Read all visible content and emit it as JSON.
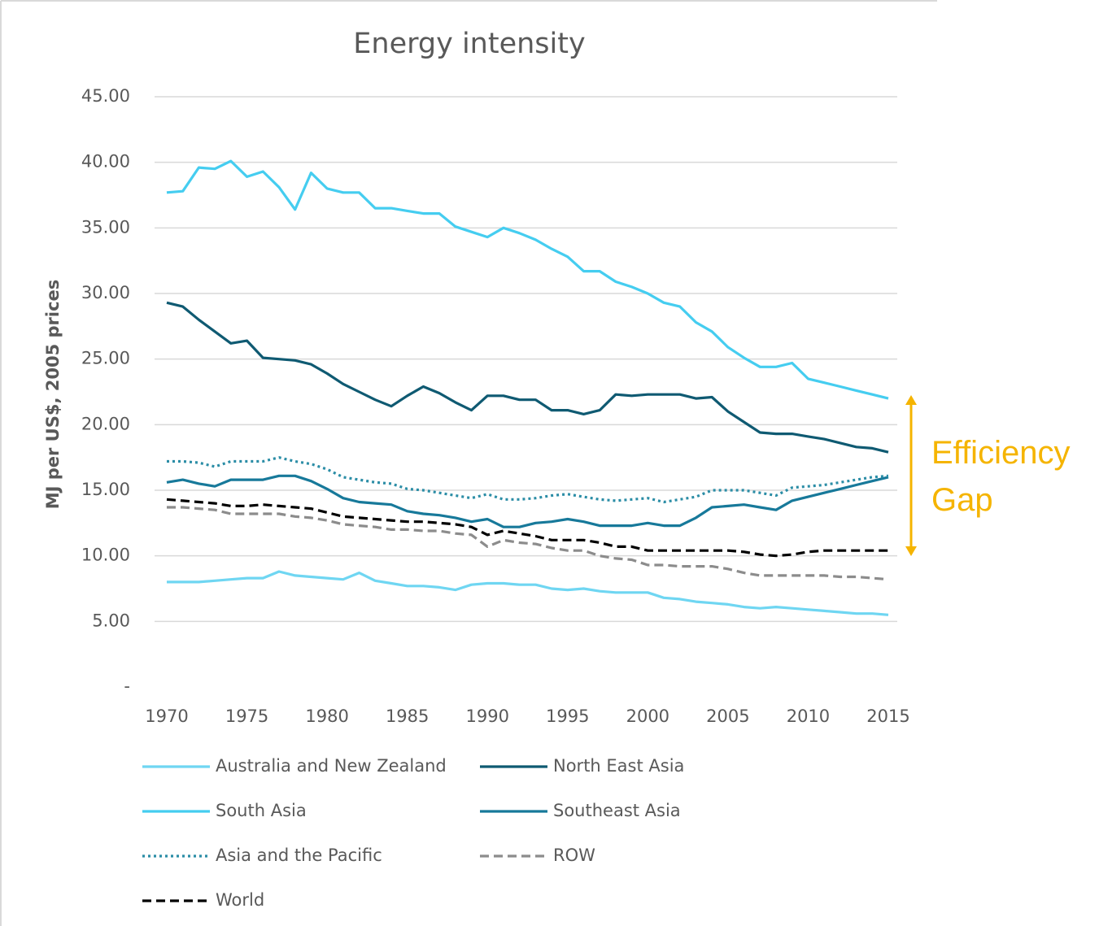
{
  "chart_data": {
    "type": "line",
    "title": "Energy intensity",
    "y_label": "MJ per US$, 2005 prices",
    "annotation": "Efficiency Gap",
    "x": [
      1970,
      1971,
      1972,
      1973,
      1974,
      1975,
      1976,
      1977,
      1978,
      1979,
      1980,
      1981,
      1982,
      1983,
      1984,
      1985,
      1986,
      1987,
      1988,
      1989,
      1990,
      1991,
      1992,
      1993,
      1994,
      1995,
      1996,
      1997,
      1998,
      1999,
      2000,
      2001,
      2002,
      2003,
      2004,
      2005,
      2006,
      2007,
      2008,
      2009,
      2010,
      2011,
      2012,
      2013,
      2014,
      2015
    ],
    "xlim": [
      1970,
      2015
    ],
    "xticks": [
      1970,
      1975,
      1980,
      1985,
      1990,
      1995,
      2000,
      2005,
      2010,
      2015
    ],
    "ylim": [
      0,
      45
    ],
    "yticks": [
      {
        "value": 0,
        "label": "-"
      },
      {
        "value": 5,
        "label": "5.00"
      },
      {
        "value": 10,
        "label": "10.00"
      },
      {
        "value": 15,
        "label": "15.00"
      },
      {
        "value": 20,
        "label": "20.00"
      },
      {
        "value": 25,
        "label": "25.00"
      },
      {
        "value": 30,
        "label": "30.00"
      },
      {
        "value": 35,
        "label": "35.00"
      },
      {
        "value": 40,
        "label": "40.00"
      },
      {
        "value": 45,
        "label": "45.00"
      }
    ],
    "grid": true,
    "legend": "bottom",
    "series": [
      {
        "name": "Australia and New Zealand",
        "color": "#6fd6f2",
        "style": "solid",
        "values": [
          8.0,
          8.0,
          8.0,
          8.1,
          8.2,
          8.3,
          8.3,
          8.8,
          8.5,
          8.4,
          8.3,
          8.2,
          8.7,
          8.1,
          7.9,
          7.7,
          7.7,
          7.6,
          7.4,
          7.8,
          7.9,
          7.9,
          7.8,
          7.8,
          7.5,
          7.4,
          7.5,
          7.3,
          7.2,
          7.2,
          7.2,
          6.8,
          6.7,
          6.5,
          6.4,
          6.3,
          6.1,
          6.0,
          6.1,
          6.0,
          5.9,
          5.8,
          5.7,
          5.6,
          5.6,
          5.5
        ]
      },
      {
        "name": "North East Asia",
        "color": "#0f5a72",
        "style": "solid",
        "values": [
          29.3,
          29.0,
          28.0,
          27.1,
          26.2,
          26.4,
          25.1,
          25.0,
          24.9,
          24.6,
          23.9,
          23.1,
          22.5,
          21.9,
          21.4,
          22.2,
          22.9,
          22.4,
          21.7,
          21.1,
          22.2,
          22.2,
          21.9,
          21.9,
          21.1,
          21.1,
          20.8,
          21.1,
          22.3,
          22.2,
          22.3,
          22.3,
          22.3,
          22.0,
          22.1,
          21.0,
          20.2,
          19.4,
          19.3,
          19.3,
          19.1,
          18.9,
          18.6,
          18.3,
          18.2,
          17.9
        ]
      },
      {
        "name": "South Asia",
        "color": "#45cdf0",
        "style": "solid",
        "values": [
          37.7,
          37.8,
          39.6,
          39.5,
          40.1,
          38.9,
          39.3,
          38.1,
          36.4,
          39.2,
          38.0,
          37.7,
          37.7,
          36.5,
          36.5,
          36.3,
          36.1,
          36.1,
          35.1,
          34.7,
          34.3,
          35.0,
          34.6,
          34.1,
          33.4,
          32.8,
          31.7,
          31.7,
          30.9,
          30.5,
          30.0,
          29.3,
          29.0,
          27.8,
          27.1,
          25.9,
          25.1,
          24.4,
          24.4,
          24.7,
          23.5,
          23.2,
          22.9,
          22.6,
          22.3,
          22.0
        ]
      },
      {
        "name": "Southeast Asia",
        "color": "#17799a",
        "style": "solid",
        "values": [
          15.6,
          15.8,
          15.5,
          15.3,
          15.8,
          15.8,
          15.8,
          16.1,
          16.1,
          15.7,
          15.1,
          14.4,
          14.1,
          14.0,
          13.9,
          13.4,
          13.2,
          13.1,
          12.9,
          12.6,
          12.8,
          12.2,
          12.2,
          12.5,
          12.6,
          12.8,
          12.6,
          12.3,
          12.3,
          12.3,
          12.5,
          12.3,
          12.3,
          12.9,
          13.7,
          13.8,
          13.9,
          13.7,
          13.5,
          14.2,
          14.5,
          14.8,
          15.1,
          15.4,
          15.7,
          16.0
        ]
      },
      {
        "name": "Asia and the Pacific",
        "color": "#2b8da6",
        "style": "dotted",
        "values": [
          17.2,
          17.2,
          17.1,
          16.8,
          17.2,
          17.2,
          17.2,
          17.5,
          17.2,
          17.0,
          16.6,
          16.0,
          15.8,
          15.6,
          15.5,
          15.1,
          15.0,
          14.8,
          14.6,
          14.4,
          14.7,
          14.3,
          14.3,
          14.4,
          14.6,
          14.7,
          14.5,
          14.3,
          14.2,
          14.3,
          14.4,
          14.1,
          14.3,
          14.5,
          15.0,
          15.0,
          15.0,
          14.8,
          14.6,
          15.2,
          15.3,
          15.4,
          15.6,
          15.8,
          16.0,
          16.1
        ]
      },
      {
        "name": "ROW",
        "color": "#8c8c8c",
        "style": "dashed",
        "values": [
          13.7,
          13.7,
          13.6,
          13.5,
          13.2,
          13.2,
          13.2,
          13.2,
          13.0,
          12.9,
          12.7,
          12.4,
          12.3,
          12.2,
          12.0,
          12.0,
          11.9,
          11.9,
          11.7,
          11.6,
          10.7,
          11.2,
          11.0,
          10.9,
          10.6,
          10.4,
          10.4,
          10.0,
          9.8,
          9.7,
          9.3,
          9.3,
          9.2,
          9.2,
          9.2,
          9.0,
          8.7,
          8.5,
          8.5,
          8.5,
          8.5,
          8.5,
          8.4,
          8.4,
          8.3,
          8.2
        ]
      },
      {
        "name": "World",
        "color": "#000000",
        "style": "dashed",
        "values": [
          14.3,
          14.2,
          14.1,
          14.0,
          13.8,
          13.8,
          13.9,
          13.8,
          13.7,
          13.6,
          13.3,
          13.0,
          12.9,
          12.8,
          12.7,
          12.6,
          12.6,
          12.5,
          12.4,
          12.2,
          11.6,
          11.9,
          11.7,
          11.5,
          11.2,
          11.2,
          11.2,
          11.0,
          10.7,
          10.7,
          10.4,
          10.4,
          10.4,
          10.4,
          10.4,
          10.4,
          10.3,
          10.1,
          10.0,
          10.1,
          10.3,
          10.4,
          10.4,
          10.4,
          10.4,
          10.4
        ]
      }
    ]
  }
}
